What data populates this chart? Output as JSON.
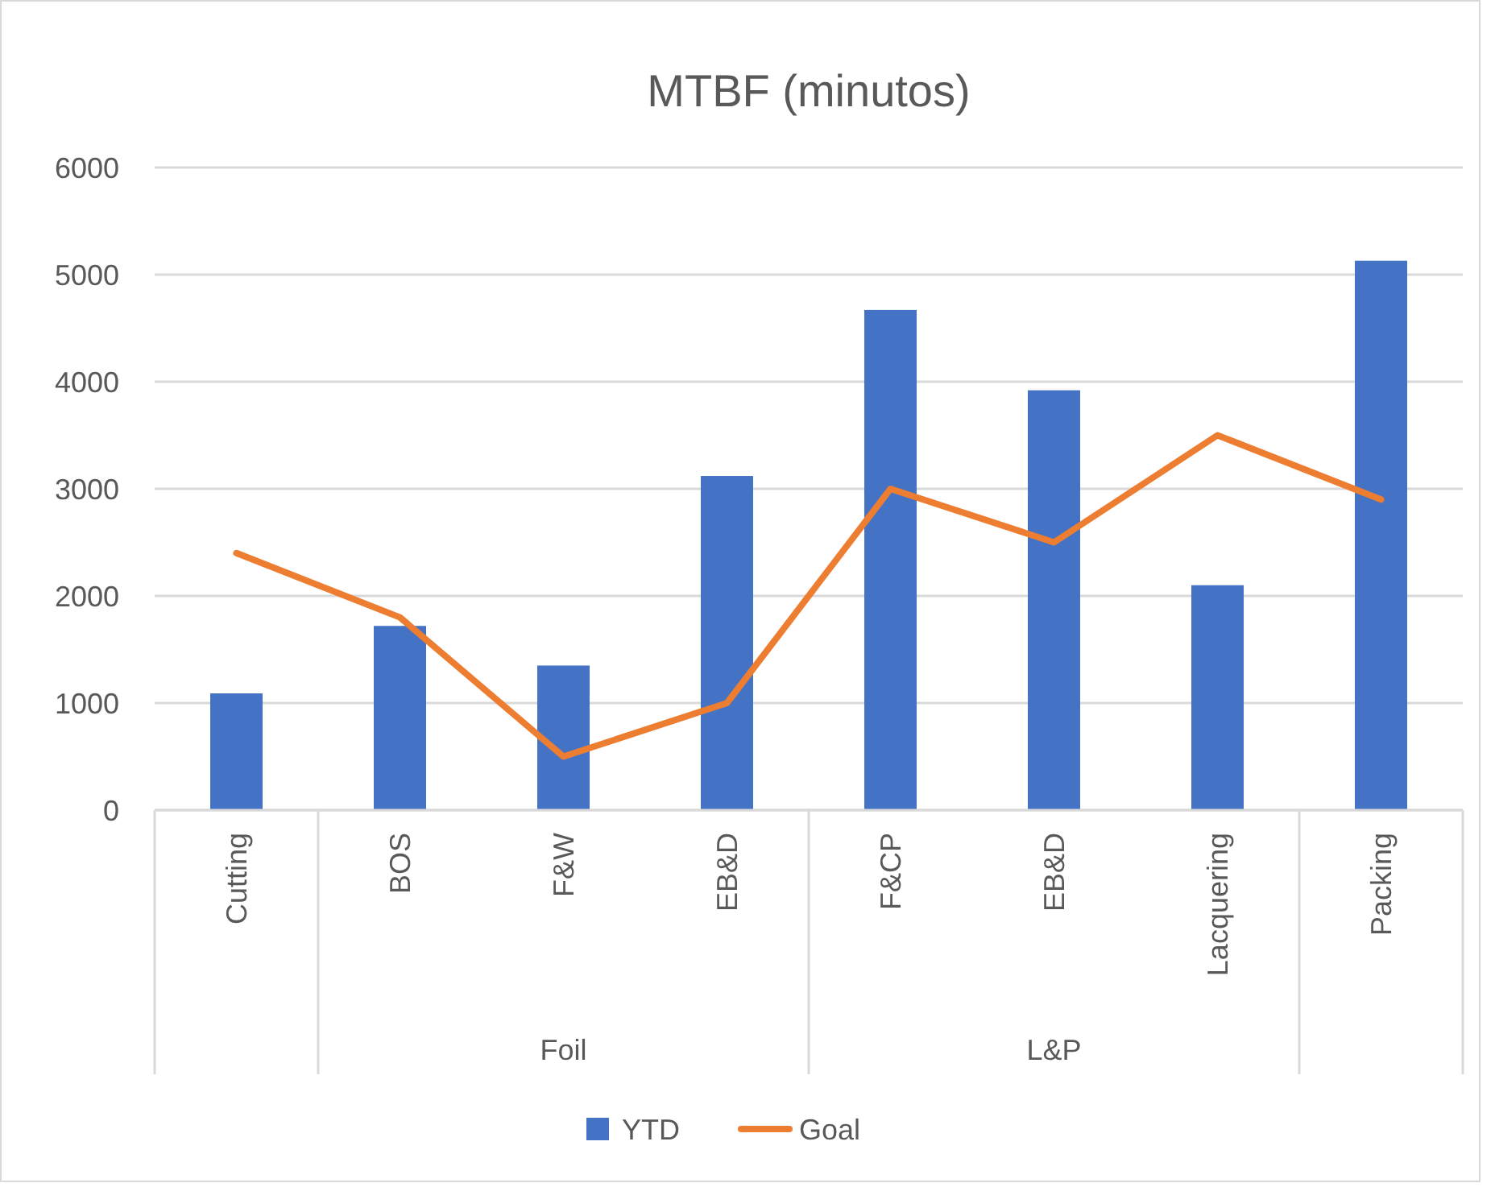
{
  "chart_data": {
    "type": "bar",
    "title": "MTBF (minutos)",
    "categories": [
      "Cutting",
      "BOS",
      "F&W",
      "EB&D",
      "F&CP",
      "EB&D",
      "Lacquering",
      "Packing"
    ],
    "series": [
      {
        "name": "YTD",
        "color": "#4472c4",
        "values": [
          1090,
          1720,
          1350,
          3120,
          4670,
          3920,
          2100,
          5130
        ]
      },
      {
        "name": "Goal",
        "type": "line",
        "color": "#ed7d31",
        "values": [
          2400,
          1800,
          500,
          1000,
          3000,
          2500,
          3500,
          2900
        ]
      }
    ],
    "annotations": [
      "Foil",
      "L&P"
    ],
    "ylim": [
      0,
      6000
    ],
    "yticks": [
      0,
      1000,
      2000,
      3000,
      4000,
      5000,
      6000
    ],
    "grid": "y",
    "legend": "bottom",
    "marker": "none",
    "line_style": "solid"
  }
}
